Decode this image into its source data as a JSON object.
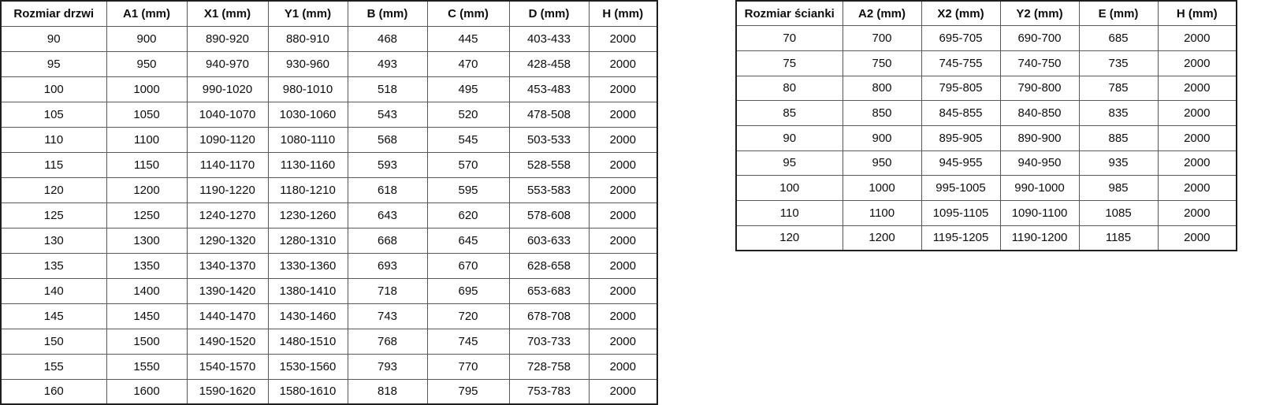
{
  "door_table": {
    "name": "Rozmiar drzwi",
    "headers": [
      "Rozmiar drzwi",
      "A1 (mm)",
      "X1 (mm)",
      "Y1 (mm)",
      "B (mm)",
      "C (mm)",
      "D (mm)",
      "H (mm)"
    ],
    "rows": [
      [
        "90",
        "900",
        "890-920",
        "880-910",
        "468",
        "445",
        "403-433",
        "2000"
      ],
      [
        "95",
        "950",
        "940-970",
        "930-960",
        "493",
        "470",
        "428-458",
        "2000"
      ],
      [
        "100",
        "1000",
        "990-1020",
        "980-1010",
        "518",
        "495",
        "453-483",
        "2000"
      ],
      [
        "105",
        "1050",
        "1040-1070",
        "1030-1060",
        "543",
        "520",
        "478-508",
        "2000"
      ],
      [
        "110",
        "1100",
        "1090-1120",
        "1080-1110",
        "568",
        "545",
        "503-533",
        "2000"
      ],
      [
        "115",
        "1150",
        "1140-1170",
        "1130-1160",
        "593",
        "570",
        "528-558",
        "2000"
      ],
      [
        "120",
        "1200",
        "1190-1220",
        "1180-1210",
        "618",
        "595",
        "553-583",
        "2000"
      ],
      [
        "125",
        "1250",
        "1240-1270",
        "1230-1260",
        "643",
        "620",
        "578-608",
        "2000"
      ],
      [
        "130",
        "1300",
        "1290-1320",
        "1280-1310",
        "668",
        "645",
        "603-633",
        "2000"
      ],
      [
        "135",
        "1350",
        "1340-1370",
        "1330-1360",
        "693",
        "670",
        "628-658",
        "2000"
      ],
      [
        "140",
        "1400",
        "1390-1420",
        "1380-1410",
        "718",
        "695",
        "653-683",
        "2000"
      ],
      [
        "145",
        "1450",
        "1440-1470",
        "1430-1460",
        "743",
        "720",
        "678-708",
        "2000"
      ],
      [
        "150",
        "1500",
        "1490-1520",
        "1480-1510",
        "768",
        "745",
        "703-733",
        "2000"
      ],
      [
        "155",
        "1550",
        "1540-1570",
        "1530-1560",
        "793",
        "770",
        "728-758",
        "2000"
      ],
      [
        "160",
        "1600",
        "1590-1620",
        "1580-1610",
        "818",
        "795",
        "753-783",
        "2000"
      ]
    ]
  },
  "wall_table": {
    "name": "Rozmiar ścianki",
    "headers": [
      "Rozmiar ścianki",
      "A2 (mm)",
      "X2 (mm)",
      "Y2 (mm)",
      "E (mm)",
      "H (mm)"
    ],
    "rows": [
      [
        "70",
        "700",
        "695-705",
        "690-700",
        "685",
        "2000"
      ],
      [
        "75",
        "750",
        "745-755",
        "740-750",
        "735",
        "2000"
      ],
      [
        "80",
        "800",
        "795-805",
        "790-800",
        "785",
        "2000"
      ],
      [
        "85",
        "850",
        "845-855",
        "840-850",
        "835",
        "2000"
      ],
      [
        "90",
        "900",
        "895-905",
        "890-900",
        "885",
        "2000"
      ],
      [
        "95",
        "950",
        "945-955",
        "940-950",
        "935",
        "2000"
      ],
      [
        "100",
        "1000",
        "995-1005",
        "990-1000",
        "985",
        "2000"
      ],
      [
        "110",
        "1100",
        "1095-1105",
        "1090-1100",
        "1085",
        "2000"
      ],
      [
        "120",
        "1200",
        "1195-1205",
        "1190-1200",
        "1185",
        "2000"
      ]
    ]
  },
  "colors": {
    "background": "#ffffff",
    "table_background": "#ffffff",
    "border_inner": "#595959",
    "border_outer": "#1f1f1f",
    "text": "#0d0d0d"
  }
}
